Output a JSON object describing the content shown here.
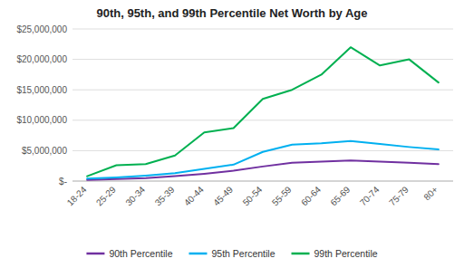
{
  "chart_data": {
    "type": "line",
    "title": "90th, 95th, and 99th Percentile Net Worth by Age",
    "categories": [
      "18-24",
      "25-29",
      "30-34",
      "35-39",
      "40-44",
      "45-49",
      "50-54",
      "55-59",
      "60-64",
      "65-69",
      "70-74",
      "75-79",
      "80+"
    ],
    "series": [
      {
        "name": "90th Percentile",
        "color": "#7030A0",
        "values": [
          200000,
          350000,
          500000,
          800000,
          1200000,
          1700000,
          2400000,
          3000000,
          3200000,
          3400000,
          3200000,
          3000000,
          2800000
        ]
      },
      {
        "name": "95th Percentile",
        "color": "#00B0F0",
        "values": [
          400000,
          600000,
          900000,
          1300000,
          2000000,
          2700000,
          4800000,
          6000000,
          6200000,
          6600000,
          6100000,
          5600000,
          5200000
        ]
      },
      {
        "name": "99th Percentile",
        "color": "#00B050",
        "values": [
          800000,
          2600000,
          2800000,
          4200000,
          8000000,
          8700000,
          13500000,
          15000000,
          17500000,
          22000000,
          19000000,
          20000000,
          16200000
        ]
      }
    ],
    "ylim": [
      0,
      25000000
    ],
    "yticks": [
      {
        "value": 0,
        "label": "$-"
      },
      {
        "value": 5000000,
        "label": "$5,000,000"
      },
      {
        "value": 10000000,
        "label": "$10,000,000"
      },
      {
        "value": 15000000,
        "label": "$15,000,000"
      },
      {
        "value": 20000000,
        "label": "$20,000,000"
      },
      {
        "value": 25000000,
        "label": "$25,000,000"
      }
    ],
    "grid": true,
    "legend": "bottom"
  }
}
